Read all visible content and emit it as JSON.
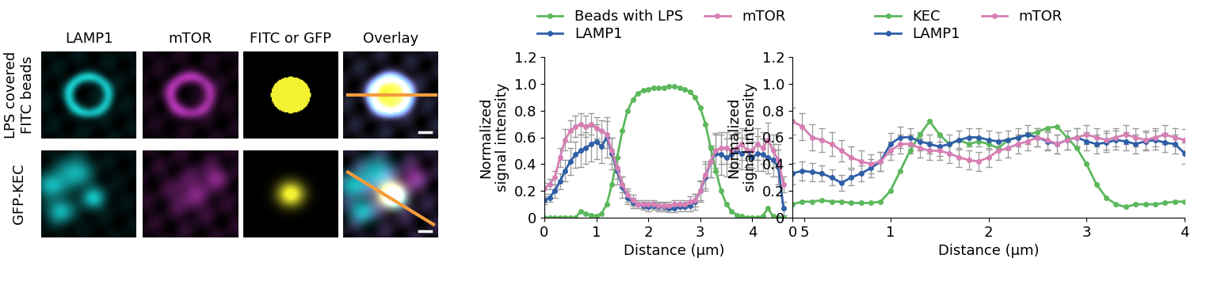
{
  "images": {
    "columns": [
      "LAMP1",
      "mTOR",
      "FITC or GFP",
      "Overlay"
    ],
    "rows": [
      "LPS covered\nFITC beads",
      "GFP-KEC"
    ]
  },
  "chart_data": [
    {
      "type": "line",
      "xlabel": "Distance (μm)",
      "ylabel": "Normalized\nsignal intensity",
      "xlim": [
        0,
        5
      ],
      "xticks": [
        0,
        1,
        2,
        3,
        4,
        5
      ],
      "ylim": [
        0,
        1.2
      ],
      "yticks": [
        0,
        0.2,
        0.4,
        0.6,
        0.8,
        1.0,
        1.2
      ],
      "legend": "upper center",
      "marker": "o",
      "x": [
        0,
        0.1,
        0.2,
        0.3,
        0.4,
        0.5,
        0.6,
        0.7,
        0.8,
        0.9,
        1.0,
        1.1,
        1.2,
        1.3,
        1.4,
        1.5,
        1.6,
        1.7,
        1.8,
        1.9,
        2.0,
        2.1,
        2.2,
        2.3,
        2.4,
        2.5,
        2.6,
        2.7,
        2.8,
        2.9,
        3.0,
        3.1,
        3.2,
        3.3,
        3.4,
        3.5,
        3.6,
        3.7,
        3.8,
        3.9,
        4.0,
        4.1,
        4.2,
        4.3,
        4.4,
        4.5,
        4.6
      ],
      "series": [
        {
          "name": "Beads with LPS",
          "color": "#5cb85c",
          "values": [
            0,
            0,
            0,
            0,
            0,
            0,
            0,
            0.05,
            0.03,
            0.02,
            0.01,
            0.03,
            0.1,
            0.25,
            0.45,
            0.65,
            0.8,
            0.88,
            0.93,
            0.95,
            0.96,
            0.97,
            0.97,
            0.97,
            0.98,
            0.98,
            0.97,
            0.96,
            0.94,
            0.9,
            0.82,
            0.7,
            0.52,
            0.35,
            0.2,
            0.1,
            0.05,
            0.02,
            0.01,
            0,
            0,
            0,
            0.01,
            0.07,
            0.01,
            0,
            0
          ]
        },
        {
          "name": "LAMP1",
          "color": "#2f5fa7",
          "values": [
            0.13,
            0.15,
            0.2,
            0.27,
            0.35,
            0.42,
            0.47,
            0.5,
            0.52,
            0.55,
            0.57,
            0.53,
            0.6,
            0.48,
            0.35,
            0.23,
            0.15,
            0.11,
            0.1,
            0.09,
            0.08,
            0.09,
            0.08,
            0.08,
            0.07,
            0.07,
            0.08,
            0.08,
            0.09,
            0.12,
            0.2,
            0.3,
            0.42,
            0.48,
            0.47,
            0.45,
            0.47,
            0.5,
            0.48,
            0.5,
            0.45,
            0.48,
            0.47,
            0.45,
            0.43,
            0.38,
            0.07
          ],
          "errors": [
            0.03,
            0.03,
            0.05,
            0.06,
            0.08,
            0.1,
            0.1,
            0.12,
            0.12,
            0.13,
            0.13,
            0.12,
            0.15,
            0.12,
            0.1,
            0.08,
            0.05,
            0.04,
            0.03,
            0.03,
            0.03,
            0.03,
            0.03,
            0.03,
            0.03,
            0.03,
            0.03,
            0.03,
            0.04,
            0.06,
            0.08,
            0.1,
            0.12,
            0.14,
            0.15,
            0.14,
            0.13,
            0.13,
            0.12,
            0.12,
            0.12,
            0.13,
            0.12,
            0.12,
            0.12,
            0.13,
            0.05
          ]
        },
        {
          "name": "mTOR",
          "color": "#d67fb4",
          "values": [
            0.22,
            0.25,
            0.3,
            0.45,
            0.58,
            0.65,
            0.68,
            0.7,
            0.68,
            0.7,
            0.67,
            0.65,
            0.62,
            0.5,
            0.37,
            0.25,
            0.17,
            0.13,
            0.1,
            0.1,
            0.1,
            0.1,
            0.09,
            0.09,
            0.09,
            0.1,
            0.1,
            0.1,
            0.12,
            0.13,
            0.2,
            0.32,
            0.42,
            0.5,
            0.52,
            0.52,
            0.5,
            0.52,
            0.55,
            0.5,
            0.5,
            0.55,
            0.52,
            0.58,
            0.5,
            0.43,
            0.25
          ],
          "errors": [
            0.04,
            0.04,
            0.05,
            0.07,
            0.08,
            0.08,
            0.08,
            0.08,
            0.08,
            0.08,
            0.08,
            0.08,
            0.1,
            0.1,
            0.08,
            0.06,
            0.05,
            0.04,
            0.03,
            0.03,
            0.03,
            0.03,
            0.03,
            0.03,
            0.03,
            0.03,
            0.03,
            0.03,
            0.04,
            0.05,
            0.07,
            0.1,
            0.12,
            0.13,
            0.12,
            0.12,
            0.12,
            0.12,
            0.12,
            0.12,
            0.13,
            0.12,
            0.12,
            0.13,
            0.12,
            0.12,
            0.06
          ]
        }
      ]
    },
    {
      "type": "line",
      "xlabel": "Distance (μm)",
      "ylabel": "Normalized\nsignal intensity",
      "xlim": [
        0,
        4
      ],
      "xticks": [
        0,
        1,
        2,
        3,
        4
      ],
      "ylim": [
        0,
        1.2
      ],
      "yticks": [
        0,
        0.2,
        0.4,
        0.6,
        0.8,
        1.0,
        1.2
      ],
      "legend": "upper center",
      "marker": "o",
      "x": [
        0,
        0.1,
        0.2,
        0.3,
        0.4,
        0.5,
        0.6,
        0.7,
        0.8,
        0.9,
        1.0,
        1.1,
        1.2,
        1.3,
        1.4,
        1.5,
        1.6,
        1.7,
        1.8,
        1.9,
        2.0,
        2.1,
        2.2,
        2.3,
        2.4,
        2.5,
        2.6,
        2.7,
        2.8,
        2.9,
        3.0,
        3.1,
        3.2,
        3.3,
        3.4,
        3.5,
        3.6,
        3.7,
        3.8,
        3.9,
        4.0
      ],
      "series": [
        {
          "name": "KEC",
          "color": "#5cb85c",
          "values": [
            0.1,
            0.12,
            0.12,
            0.13,
            0.12,
            0.12,
            0.11,
            0.11,
            0.11,
            0.12,
            0.2,
            0.35,
            0.5,
            0.62,
            0.72,
            0.62,
            0.55,
            0.58,
            0.55,
            0.57,
            0.55,
            0.52,
            0.58,
            0.6,
            0.62,
            0.64,
            0.67,
            0.68,
            0.6,
            0.52,
            0.4,
            0.25,
            0.15,
            0.1,
            0.08,
            0.1,
            0.1,
            0.1,
            0.11,
            0.12,
            0.12
          ]
        },
        {
          "name": "LAMP1",
          "color": "#2f5fa7",
          "values": [
            0.33,
            0.35,
            0.34,
            0.33,
            0.3,
            0.26,
            0.3,
            0.33,
            0.37,
            0.42,
            0.55,
            0.6,
            0.6,
            0.57,
            0.55,
            0.53,
            0.55,
            0.58,
            0.6,
            0.6,
            0.58,
            0.57,
            0.58,
            0.6,
            0.62,
            0.6,
            0.57,
            0.55,
            0.58,
            0.6,
            0.57,
            0.55,
            0.56,
            0.58,
            0.57,
            0.55,
            0.57,
            0.58,
            0.56,
            0.55,
            0.48
          ],
          "errors": [
            0.08,
            0.07,
            0.07,
            0.06,
            0.06,
            0.06,
            0.06,
            0.06,
            0.07,
            0.07,
            0.08,
            0.08,
            0.07,
            0.07,
            0.07,
            0.07,
            0.07,
            0.07,
            0.07,
            0.07,
            0.07,
            0.07,
            0.07,
            0.07,
            0.07,
            0.07,
            0.07,
            0.07,
            0.07,
            0.07,
            0.07,
            0.07,
            0.07,
            0.07,
            0.07,
            0.07,
            0.07,
            0.07,
            0.07,
            0.07,
            0.08
          ]
        },
        {
          "name": "mTOR",
          "color": "#d67fb4",
          "values": [
            0.72,
            0.68,
            0.6,
            0.58,
            0.55,
            0.5,
            0.45,
            0.42,
            0.4,
            0.42,
            0.5,
            0.55,
            0.55,
            0.52,
            0.5,
            0.5,
            0.48,
            0.45,
            0.43,
            0.42,
            0.45,
            0.5,
            0.52,
            0.55,
            0.57,
            0.6,
            0.58,
            0.55,
            0.58,
            0.6,
            0.62,
            0.6,
            0.58,
            0.6,
            0.62,
            0.6,
            0.58,
            0.6,
            0.62,
            0.6,
            0.58
          ],
          "errors": [
            0.1,
            0.1,
            0.1,
            0.09,
            0.09,
            0.08,
            0.08,
            0.08,
            0.07,
            0.07,
            0.07,
            0.07,
            0.07,
            0.07,
            0.07,
            0.07,
            0.07,
            0.07,
            0.07,
            0.07,
            0.07,
            0.07,
            0.07,
            0.07,
            0.07,
            0.07,
            0.07,
            0.07,
            0.07,
            0.07,
            0.07,
            0.07,
            0.07,
            0.07,
            0.07,
            0.07,
            0.07,
            0.07,
            0.07,
            0.07,
            0.08
          ]
        }
      ]
    }
  ]
}
